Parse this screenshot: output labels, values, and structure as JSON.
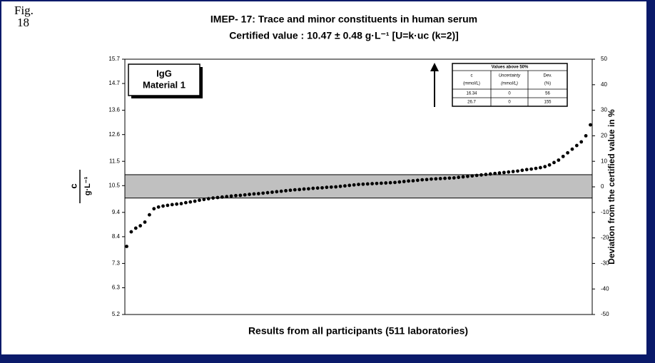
{
  "figure": {
    "label": "Fig.",
    "number": "18"
  },
  "chart_data": {
    "type": "scatter",
    "title": "IMEP- 17:   Trace and minor constituents in human serum",
    "subtitle": "Certified value : 10.47 ± 0.48 g·L⁻¹  [U=k·uc (k=2)]",
    "xlabel": "Results from all participants (511 laboratories)",
    "ylabel": {
      "symbol": "c",
      "unit": "g·L⁻¹"
    },
    "y2label": "Deviation from the certified value in %",
    "legend_box": [
      "IgG",
      "Material 1"
    ],
    "band": {
      "center": 10.47,
      "U": 0.48,
      "color": "#c0c0c0"
    },
    "color": "#000000",
    "xlim": [
      -2,
      512
    ],
    "ylim": [
      5.2,
      15.7
    ],
    "yticks": [
      5.2,
      6.3,
      7.3,
      8.4,
      9.4,
      10.5,
      11.5,
      12.6,
      13.6,
      14.7,
      15.7
    ],
    "y2lim": [
      -50,
      50
    ],
    "y2ticks": [
      -50,
      -40,
      -30,
      -20,
      -10,
      0,
      10,
      20,
      30,
      40,
      50
    ],
    "x": [
      0,
      5,
      10,
      15,
      20,
      25,
      30,
      35,
      40,
      45,
      50,
      55,
      60,
      65,
      70,
      75,
      80,
      85,
      90,
      95,
      100,
      105,
      110,
      115,
      120,
      125,
      130,
      135,
      140,
      145,
      150,
      155,
      160,
      165,
      170,
      175,
      180,
      185,
      190,
      195,
      200,
      205,
      210,
      215,
      220,
      225,
      230,
      235,
      240,
      245,
      250,
      255,
      260,
      265,
      270,
      275,
      280,
      285,
      290,
      295,
      300,
      305,
      310,
      315,
      320,
      325,
      330,
      335,
      340,
      345,
      350,
      355,
      360,
      365,
      370,
      375,
      380,
      385,
      390,
      395,
      400,
      405,
      410,
      415,
      420,
      425,
      430,
      435,
      440,
      445,
      450,
      455,
      460,
      465,
      470,
      475,
      480,
      485,
      490,
      495,
      500,
      505,
      510
    ],
    "values": [
      8.0,
      8.6,
      8.75,
      8.85,
      9.0,
      9.3,
      9.55,
      9.62,
      9.66,
      9.69,
      9.72,
      9.74,
      9.76,
      9.8,
      9.83,
      9.86,
      9.9,
      9.93,
      9.96,
      9.99,
      10.01,
      10.03,
      10.05,
      10.07,
      10.09,
      10.1,
      10.12,
      10.14,
      10.16,
      10.17,
      10.19,
      10.21,
      10.23,
      10.25,
      10.27,
      10.29,
      10.31,
      10.33,
      10.34,
      10.36,
      10.37,
      10.39,
      10.4,
      10.41,
      10.43,
      10.44,
      10.45,
      10.47,
      10.49,
      10.51,
      10.53,
      10.55,
      10.56,
      10.57,
      10.58,
      10.59,
      10.6,
      10.61,
      10.62,
      10.63,
      10.65,
      10.67,
      10.69,
      10.7,
      10.72,
      10.74,
      10.75,
      10.77,
      10.78,
      10.79,
      10.8,
      10.81,
      10.82,
      10.84,
      10.86,
      10.88,
      10.9,
      10.92,
      10.94,
      10.96,
      10.98,
      11.0,
      11.02,
      11.04,
      11.06,
      11.08,
      11.1,
      11.13,
      11.16,
      11.18,
      11.21,
      11.24,
      11.28,
      11.35,
      11.45,
      11.55,
      11.7,
      11.85,
      12.0,
      12.15,
      12.3,
      12.55,
      13.0
    ],
    "inset_table": {
      "title": "Values above 50%",
      "headers": [
        [
          "c",
          "(mmol/L)"
        ],
        [
          "Uncertainty",
          "(mmol/L)"
        ],
        [
          "Dev.",
          "(%)"
        ]
      ],
      "rows": [
        [
          16.34,
          0,
          56
        ],
        [
          26.7,
          0,
          155
        ]
      ]
    }
  }
}
